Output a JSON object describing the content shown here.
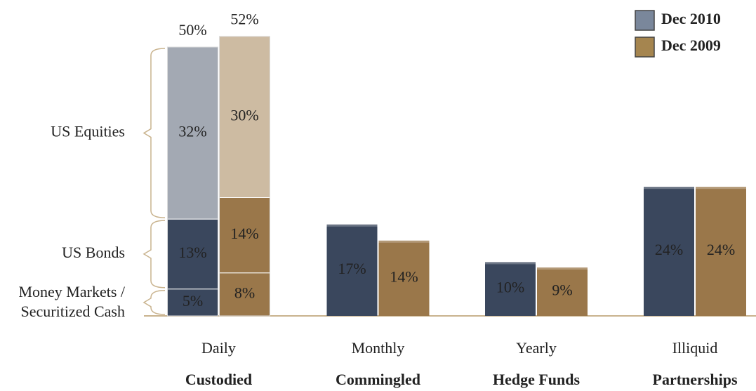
{
  "chart_data": {
    "type": "bar",
    "categories": [
      "Daily",
      "Monthly",
      "Yearly",
      "Illiquid"
    ],
    "subcategories": [
      "Custodied",
      "Commingled",
      "Hedge Funds",
      "Partnerships"
    ],
    "stacked": [
      true,
      false,
      false,
      false
    ],
    "series": [
      {
        "name": "Dec 2010",
        "color": "#3a475d",
        "legend_color": "#7a879b",
        "values": [
          50,
          17,
          10,
          24
        ],
        "value_labels": [
          "50%",
          "17%",
          "10%",
          "24%"
        ]
      },
      {
        "name": "Dec 2009",
        "color": "#9a774a",
        "legend_color": "#a5854f",
        "values": [
          52,
          14,
          9,
          24
        ],
        "value_labels": [
          "52%",
          "14%",
          "9%",
          "24%"
        ]
      }
    ],
    "stack_segments": [
      {
        "label": [
          "Money Markets /",
          "Securitized Cash"
        ],
        "values": [
          5,
          8
        ],
        "value_labels": [
          "5%",
          "8%"
        ],
        "colors": [
          "#3a475d",
          "#9a774a"
        ]
      },
      {
        "label": [
          "US Bonds"
        ],
        "values": [
          13,
          14
        ],
        "value_labels": [
          "13%",
          "14%"
        ],
        "colors": [
          "#3a475d",
          "#9a774a"
        ]
      },
      {
        "label": [
          "US Equities"
        ],
        "values": [
          32,
          30
        ],
        "value_labels": [
          "32%",
          "30%"
        ],
        "colors": [
          "#a3a9b3",
          "#cdbba2"
        ]
      }
    ],
    "legend": "top-right"
  }
}
